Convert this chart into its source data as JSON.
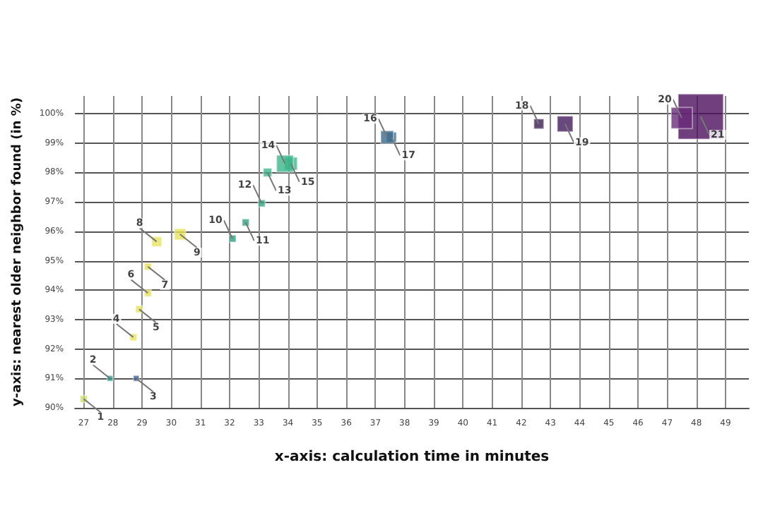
{
  "chart_data": {
    "type": "bubble",
    "xlabel": "x-axis: calculation time in minutes",
    "ylabel": "y-axis: nearest older neighbor found (in %)",
    "x": [
      27.0,
      27.9,
      28.8,
      28.7,
      28.9,
      29.2,
      29.2,
      29.5,
      30.3,
      32.1,
      32.55,
      33.1,
      33.3,
      33.9,
      34.1,
      37.4,
      37.55,
      42.6,
      43.5,
      47.5,
      48.15
    ],
    "values": [
      90.3,
      91.0,
      91.0,
      92.4,
      93.35,
      93.9,
      94.8,
      95.65,
      95.9,
      95.75,
      96.3,
      96.95,
      98.0,
      98.3,
      98.3,
      99.2,
      99.2,
      99.65,
      99.65,
      99.85,
      99.9
    ],
    "sizes": [
      0.024,
      0.016,
      0.016,
      0.024,
      0.024,
      0.024,
      0.024,
      0.048,
      0.0625,
      0.024,
      0.024,
      0.024,
      0.035,
      0.14,
      0.08,
      0.08,
      0.048,
      0.048,
      0.12,
      0.22,
      1
    ],
    "colors": [
      "#c8dc6a",
      "#2a9d8a",
      "#3b5c8c",
      "#e6e35a",
      "#e6e35a",
      "#e2e05a",
      "#e2e05a",
      "#e6e35a",
      "#e6e35a",
      "#30a080",
      "#30a080",
      "#34a884",
      "#3bb58a",
      "#3bb58a",
      "#3bb58a",
      "#3b6b8c",
      "#3b6b8c",
      "#3a1b4f",
      "#421a5c",
      "#6a2a7a",
      "#4b0f5e"
    ],
    "marker": "square",
    "grid": true,
    "xlim": [
      26.7,
      49.8
    ],
    "xticks": [
      27,
      28,
      29,
      30,
      31,
      32,
      33,
      34,
      35,
      36,
      37,
      38,
      39,
      40,
      41,
      42,
      43,
      44,
      45,
      46,
      47,
      48,
      49
    ],
    "ylim": [
      90,
      100.6
    ],
    "yticks": [
      {
        "value": 90,
        "label": "90%"
      },
      {
        "value": 91,
        "label": "91%"
      },
      {
        "value": 92,
        "label": "92%"
      },
      {
        "value": 93,
        "label": "93%"
      },
      {
        "value": 94,
        "label": "94%"
      },
      {
        "value": 95,
        "label": "95%"
      },
      {
        "value": 96,
        "label": "96%"
      },
      {
        "value": 97,
        "label": "97%"
      },
      {
        "value": 98,
        "label": "98%"
      },
      {
        "value": 99,
        "label": "99%"
      },
      {
        "value": 100,
        "label": "100%"
      }
    ],
    "annotations": [
      {
        "text": "1",
        "x": 27.0,
        "y": 90.3
      },
      {
        "text": "2",
        "x": 27.9,
        "y": 91.0
      },
      {
        "text": "3",
        "x": 28.8,
        "y": 91.0
      },
      {
        "text": "4",
        "x": 28.7,
        "y": 92.4
      },
      {
        "text": "5",
        "x": 28.9,
        "y": 93.35
      },
      {
        "text": "6",
        "x": 29.2,
        "y": 93.9
      },
      {
        "text": "7",
        "x": 29.2,
        "y": 94.8
      },
      {
        "text": "8",
        "x": 29.5,
        "y": 95.65
      },
      {
        "text": "9",
        "x": 30.3,
        "y": 95.9
      },
      {
        "text": "10",
        "x": 32.1,
        "y": 95.75
      },
      {
        "text": "11",
        "x": 32.55,
        "y": 96.3
      },
      {
        "text": "12",
        "x": 33.1,
        "y": 96.95
      },
      {
        "text": "13",
        "x": 33.3,
        "y": 98.0
      },
      {
        "text": "14",
        "x": 33.9,
        "y": 98.3
      },
      {
        "text": "15",
        "x": 34.1,
        "y": 98.3
      },
      {
        "text": "16",
        "x": 37.4,
        "y": 99.2
      },
      {
        "text": "17",
        "x": 37.55,
        "y": 99.2
      },
      {
        "text": "18",
        "x": 42.6,
        "y": 99.65
      },
      {
        "text": "19",
        "x": 43.5,
        "y": 99.65
      },
      {
        "text": "20",
        "x": 47.5,
        "y": 99.85
      },
      {
        "text": "21",
        "x": 48.15,
        "y": 99.9
      }
    ]
  }
}
